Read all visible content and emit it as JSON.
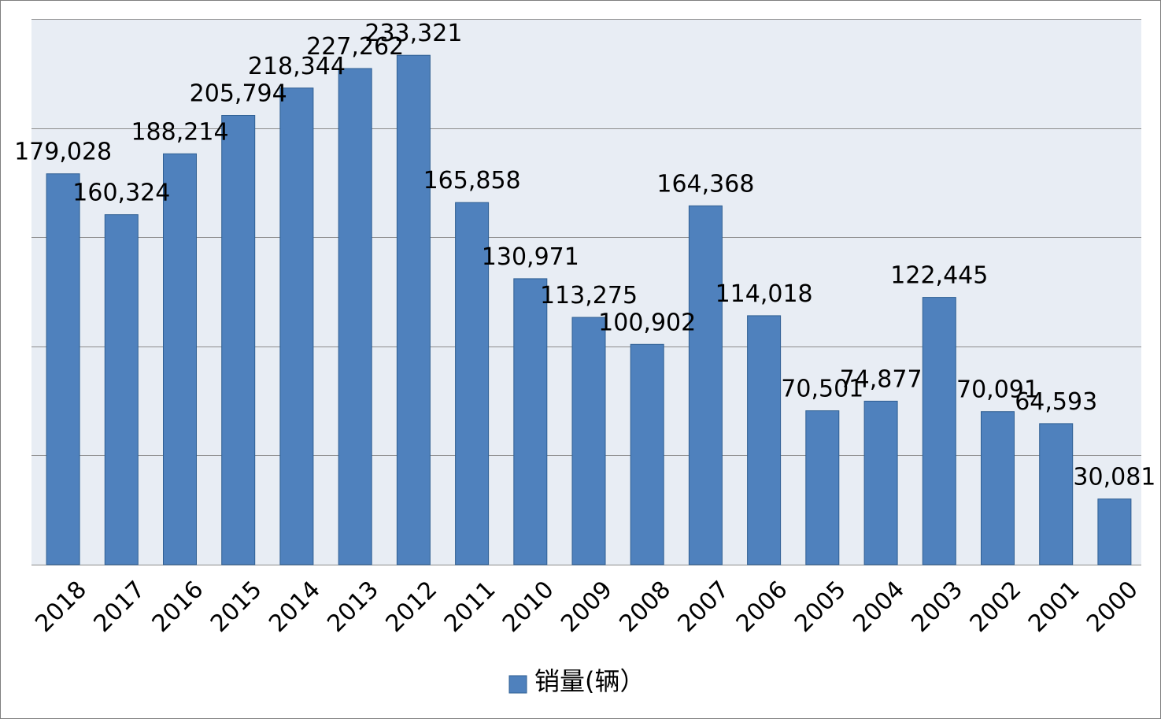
{
  "chart_data": {
    "type": "bar",
    "categories": [
      "2018",
      "2017",
      "2016",
      "2015",
      "2014",
      "2013",
      "2012",
      "2011",
      "2010",
      "2009",
      "2008",
      "2007",
      "2006",
      "2005",
      "2004",
      "2003",
      "2002",
      "2001",
      "2000"
    ],
    "series": [
      {
        "name": "销量(辆）",
        "values": [
          179028,
          160324,
          188214,
          205794,
          218344,
          227262,
          233321,
          165858,
          130971,
          113275,
          100902,
          164368,
          114018,
          70501,
          74877,
          122445,
          70091,
          64593,
          30081
        ],
        "labels": [
          "179,028",
          "160,324",
          "188,214",
          "205,794",
          "218,344",
          "227,262",
          "233,321",
          "165,858",
          "130,971",
          "113,275",
          "100,902",
          "164,368",
          "114,018",
          "70,501",
          "74,877",
          "122,445",
          "70,091",
          "64,593",
          "30,081"
        ]
      }
    ],
    "ylim": [
      0,
      250000
    ],
    "gridlines": [
      0,
      50000,
      100000,
      150000,
      200000,
      250000
    ],
    "y_tick_labels_visible": false,
    "grid": true,
    "legend_position": "bottom",
    "colors": {
      "bar": "#4f81bd",
      "bar_stroke": "#2f5f93",
      "plot_background": "#e8edf4",
      "gridline": "#8c8c8c"
    }
  }
}
